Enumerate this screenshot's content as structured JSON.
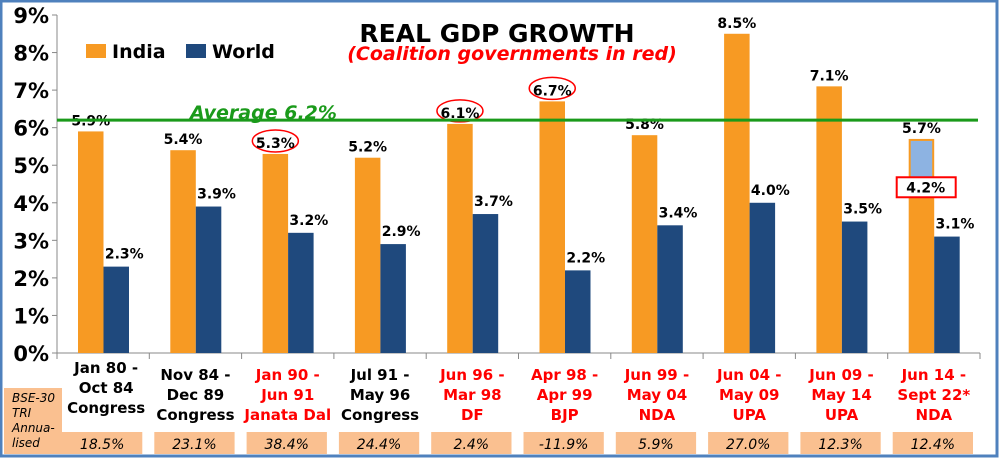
{
  "chart_data": {
    "type": "bar",
    "title": "REAL GDP GROWTH",
    "subtitle": "(Coalition governments in red)",
    "ylim": [
      0,
      9
    ],
    "yticks": [
      "0%",
      "1%",
      "2%",
      "3%",
      "4%",
      "5%",
      "6%",
      "7%",
      "8%",
      "9%"
    ],
    "average": {
      "value": 6.2,
      "label": "Average 6.2%"
    },
    "categories": [
      {
        "lines": [
          "Jan 80 -",
          "Oct 84",
          "Congress"
        ],
        "coalition": false
      },
      {
        "lines": [
          "Nov 84 -",
          "Dec 89",
          "Congress"
        ],
        "coalition": false
      },
      {
        "lines": [
          "Jan 90 -",
          "Jun 91",
          "Janata Dal"
        ],
        "coalition": true
      },
      {
        "lines": [
          "Jul 91 -",
          "May 96",
          "Congress"
        ],
        "coalition": false
      },
      {
        "lines": [
          "Jun 96 -",
          "Mar 98",
          "DF"
        ],
        "coalition": true
      },
      {
        "lines": [
          "Apr 98 -",
          "Apr 99",
          "BJP"
        ],
        "coalition": true
      },
      {
        "lines": [
          "Jun 99 -",
          "May 04",
          "NDA"
        ],
        "coalition": true
      },
      {
        "lines": [
          "Jun 04 -",
          "May 09",
          "UPA"
        ],
        "coalition": true
      },
      {
        "lines": [
          "Jun 09 -",
          "May 14",
          "UPA"
        ],
        "coalition": true
      },
      {
        "lines": [
          "Jun 14 -",
          "Sept 22*",
          "NDA"
        ],
        "coalition": true
      }
    ],
    "series": [
      {
        "name": "India",
        "color": "#f79a23",
        "values": [
          5.9,
          5.4,
          5.3,
          5.2,
          6.1,
          6.7,
          5.8,
          8.5,
          7.1,
          5.7
        ],
        "labels": [
          "5.9%",
          "5.4%",
          "5.3%",
          "5.2%",
          "6.1%",
          "6.7%",
          "5.8%",
          "8.5%",
          "7.1%",
          "5.7%"
        ]
      },
      {
        "name": "World",
        "color": "#1f497d",
        "values": [
          2.3,
          3.9,
          3.2,
          2.9,
          3.7,
          2.2,
          3.4,
          4.0,
          3.5,
          3.1
        ],
        "labels": [
          "2.3%",
          "3.9%",
          "3.2%",
          "2.9%",
          "3.7%",
          "2.2%",
          "3.4%",
          "4.0%",
          "3.5%",
          "3.1%"
        ]
      }
    ],
    "circled_india_labels": [
      2,
      4,
      5
    ],
    "annotation": {
      "category_index": 9,
      "label": "4.2%",
      "value": 4.2
    },
    "bse": {
      "header_lines": [
        "BSE-30",
        "TRI",
        "Annua-",
        "lised"
      ],
      "values": [
        "18.5%",
        "23.1%",
        "38.4%",
        "24.4%",
        "2.4%",
        "-11.9%",
        "5.9%",
        "27.0%",
        "12.3%",
        "12.4%"
      ]
    },
    "colors": {
      "coalition": "#ff0000",
      "normal": "#000000",
      "average": "#1a9a1a",
      "bse_bg": "#fac090",
      "frame": "#4f81bd"
    }
  }
}
